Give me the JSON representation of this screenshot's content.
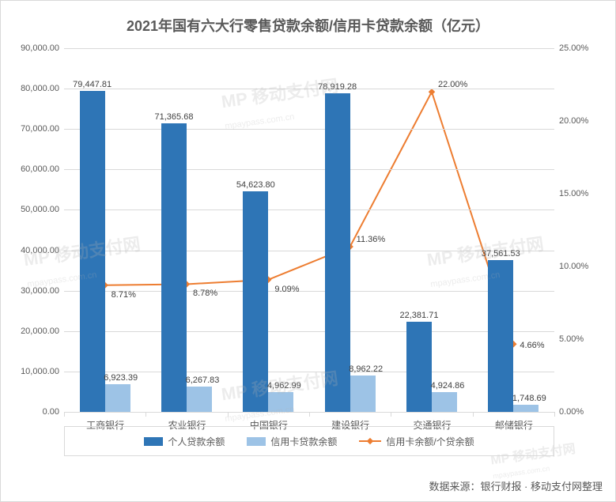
{
  "chart": {
    "type": "bar-line-combo",
    "title": "2021年国有六大行零售贷款余额/信用卡贷款余额（亿元）",
    "title_fontsize": 18,
    "title_color": "#595959",
    "background_color": "#ffffff",
    "border_color": "#d9d9d9",
    "grid_color": "#d9d9d9",
    "categories": [
      "工商银行",
      "农业银行",
      "中国银行",
      "建设银行",
      "交通银行",
      "邮储银行"
    ],
    "series": {
      "personal_loan": {
        "label": "个人贷款余额",
        "type": "bar",
        "color": "#2e75b6",
        "values": [
          79447.81,
          71365.68,
          54623.8,
          78919.28,
          22381.71,
          37561.53
        ],
        "value_labels": [
          "79,447.81",
          "71,365.68",
          "54,623.80",
          "78,919.28",
          "22,381.71",
          "37,561.53"
        ]
      },
      "credit_card_loan": {
        "label": "信用卡贷款余额",
        "type": "bar",
        "color": "#9dc3e6",
        "values": [
          6923.39,
          6267.83,
          4962.99,
          8962.22,
          4924.86,
          1748.69
        ],
        "value_labels": [
          "6,923.39",
          "6,267.83",
          "4,962.99",
          "8,962.22",
          "4,924.86",
          "1,748.69"
        ]
      },
      "ratio": {
        "label": "信用卡余额/个贷余额",
        "type": "line",
        "color": "#ed7d31",
        "values": [
          8.71,
          8.78,
          9.09,
          11.36,
          22.0,
          4.66
        ],
        "value_labels": [
          "8.71%",
          "8.78%",
          "9.09%",
          "11.36%",
          "22.00%",
          "4.66%"
        ],
        "line_width": 2,
        "marker": "diamond"
      }
    },
    "y_left": {
      "min": 0,
      "max": 90000,
      "step": 10000,
      "tick_labels": [
        "0.00",
        "10,000.00",
        "20,000.00",
        "30,000.00",
        "40,000.00",
        "50,000.00",
        "60,000.00",
        "70,000.00",
        "80,000.00",
        "90,000.00"
      ]
    },
    "y_right": {
      "min": 0,
      "max": 25,
      "step": 5,
      "tick_labels": [
        "0.00%",
        "5.00%",
        "10.00%",
        "15.00%",
        "20.00%",
        "25.00%"
      ]
    },
    "bar_group_width": 0.62,
    "label_fontsize": 11,
    "axis_fontsize": 11
  },
  "source": "数据来源：银行财报 · 移动支付网整理",
  "watermark": {
    "text": "MP 移动支付网",
    "sub": "mpaypass.com.cn"
  }
}
